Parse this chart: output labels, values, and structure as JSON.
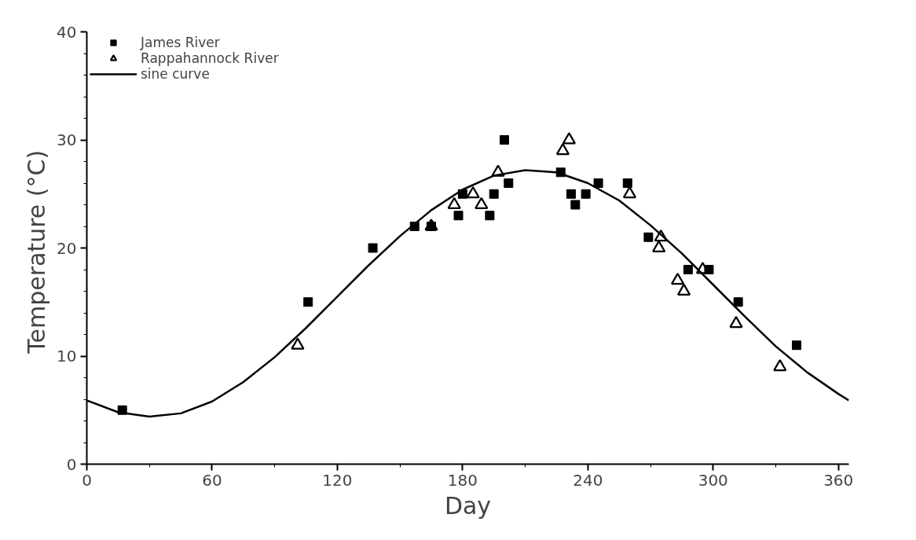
{
  "chart_data": {
    "type": "scatter",
    "xlabel": "Day",
    "ylabel": "Temperature  (°C)",
    "xlim": [
      0,
      365
    ],
    "ylim": [
      0,
      40
    ],
    "xticks": [
      0,
      60,
      120,
      180,
      240,
      300,
      360
    ],
    "yticks": [
      0,
      10,
      20,
      30,
      40
    ],
    "grid": false,
    "legend": "top left",
    "series": [
      {
        "name": "James River",
        "marker": "square",
        "color": "#000000",
        "x": [
          17,
          106,
          137,
          157,
          165,
          178,
          180,
          193,
          195,
          200,
          202,
          227,
          232,
          234,
          239,
          245,
          259,
          269,
          288,
          298,
          312,
          340
        ],
        "values": [
          5,
          15,
          20,
          22,
          22,
          23,
          25,
          23,
          25,
          30,
          26,
          27,
          25,
          24,
          25,
          26,
          26,
          21,
          18,
          18,
          15,
          11
        ]
      },
      {
        "name": "Rappahannock River",
        "marker": "triangle",
        "color": "#000000",
        "x": [
          101,
          165,
          176,
          185,
          189,
          197,
          228,
          231,
          260,
          274,
          275,
          283,
          286,
          295,
          311,
          332
        ],
        "values": [
          11,
          22,
          24,
          25,
          24,
          27,
          29,
          30,
          25,
          20,
          21,
          17,
          16,
          18,
          13,
          9
        ]
      },
      {
        "name": "sine curve",
        "type": "line",
        "marker": "none",
        "line_style": "solid",
        "color": "#000000",
        "x": [
          0,
          15,
          30,
          45,
          60,
          75,
          90,
          105,
          120,
          135,
          150,
          165,
          180,
          195,
          210,
          225,
          240,
          255,
          270,
          285,
          300,
          315,
          330,
          345,
          360,
          365
        ],
        "values": [
          5.9,
          4.8,
          4.4,
          4.7,
          5.8,
          7.6,
          9.9,
          12.6,
          15.5,
          18.4,
          21.1,
          23.5,
          25.4,
          26.7,
          27.2,
          27.0,
          26.0,
          24.4,
          22.1,
          19.5,
          16.6,
          13.7,
          10.9,
          8.5,
          6.5,
          5.9
        ]
      }
    ]
  }
}
